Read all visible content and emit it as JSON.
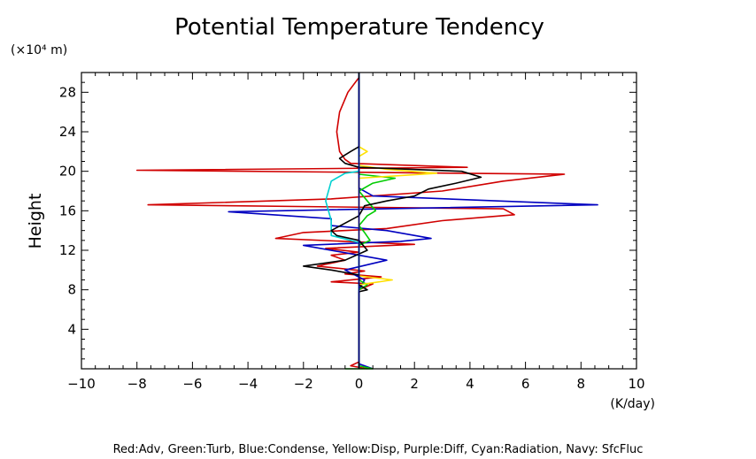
{
  "chart_data": {
    "type": "line",
    "title": "Potential Temperature Tendency",
    "xlabel": "",
    "ylabel": "Height",
    "y_unit": "(×10⁴ m)",
    "x_unit": "(K/day)",
    "xlim": [
      -10,
      10
    ],
    "ylim": [
      0,
      30
    ],
    "x_ticks": [
      -10,
      -8,
      -6,
      -4,
      -2,
      0,
      2,
      4,
      6,
      8,
      10
    ],
    "y_ticks": [
      4,
      8,
      12,
      16,
      20,
      24,
      28
    ],
    "grid": false,
    "legend_text": "Red:Adv, Green:Turb, Blue:Condense, Yellow:Disp, Purple:Diff, Cyan:Radiation, Navy: SfcFluc",
    "series": [
      {
        "color": "#d00000",
        "points": [
          [
            0.3,
            0
          ],
          [
            -0.3,
            0.3
          ],
          [
            0,
            0.7
          ],
          [
            0,
            8
          ],
          [
            0.5,
            8.6
          ],
          [
            -1,
            8.8
          ],
          [
            0.8,
            9.3
          ],
          [
            -0.5,
            9.6
          ],
          [
            0.2,
            9.9
          ],
          [
            -1.5,
            10.4
          ],
          [
            -0.5,
            11
          ],
          [
            -1,
            11.5
          ],
          [
            0,
            11.8
          ],
          [
            -1.2,
            12.2
          ],
          [
            2,
            12.6
          ],
          [
            -3,
            13.2
          ],
          [
            -2,
            13.8
          ],
          [
            1,
            14.2
          ],
          [
            3,
            15
          ],
          [
            5.6,
            15.6
          ],
          [
            5.2,
            16.2
          ],
          [
            -7.6,
            16.6
          ],
          [
            -1,
            17.2
          ],
          [
            3,
            18
          ],
          [
            5.2,
            19
          ],
          [
            7.4,
            19.7
          ],
          [
            -8,
            20.1
          ],
          [
            3.9,
            20.4
          ],
          [
            -0.3,
            20.8
          ],
          [
            -0.5,
            21.2
          ],
          [
            -0.7,
            22
          ],
          [
            -0.8,
            24
          ],
          [
            -0.7,
            26
          ],
          [
            -0.4,
            28
          ],
          [
            0,
            29.5
          ]
        ]
      },
      {
        "color": "#0000c0",
        "points": [
          [
            0.5,
            0
          ],
          [
            0,
            0.5
          ],
          [
            0,
            8
          ],
          [
            0.2,
            9
          ],
          [
            -0.5,
            10
          ],
          [
            1,
            11
          ],
          [
            -2,
            12.5
          ],
          [
            1.5,
            12.9
          ],
          [
            2.6,
            13.2
          ],
          [
            1,
            14
          ],
          [
            -1,
            14.5
          ],
          [
            -1,
            15.2
          ],
          [
            -4.7,
            15.9
          ],
          [
            8.6,
            16.6
          ],
          [
            0.5,
            17.5
          ],
          [
            0,
            18.3
          ],
          [
            0,
            20
          ],
          [
            0,
            30
          ]
        ]
      },
      {
        "color": "#00cc00",
        "points": [
          [
            -0.5,
            0
          ],
          [
            0.5,
            0
          ],
          [
            0,
            0.3
          ],
          [
            0,
            8
          ],
          [
            0.3,
            8.5
          ],
          [
            0,
            9
          ],
          [
            0,
            12.5
          ],
          [
            0.4,
            13
          ],
          [
            0.2,
            13.8
          ],
          [
            0,
            14.5
          ],
          [
            0.3,
            15.5
          ],
          [
            0.6,
            16
          ],
          [
            0.3,
            17
          ],
          [
            0,
            18
          ],
          [
            0.5,
            18.8
          ],
          [
            1.3,
            19.3
          ],
          [
            0,
            19.7
          ],
          [
            0,
            30
          ]
        ]
      },
      {
        "color": "#ffe000",
        "points": [
          [
            0,
            0
          ],
          [
            0,
            8.5
          ],
          [
            1.2,
            9
          ],
          [
            0,
            9.4
          ],
          [
            0,
            19.3
          ],
          [
            2.8,
            19.8
          ],
          [
            1,
            20.2
          ],
          [
            0,
            20.6
          ],
          [
            0,
            21.5
          ],
          [
            0.3,
            22
          ],
          [
            0,
            22.5
          ],
          [
            0,
            30
          ]
        ]
      },
      {
        "color": "#00d0d0",
        "points": [
          [
            0,
            0
          ],
          [
            0,
            12.8
          ],
          [
            -1,
            13.5
          ],
          [
            -1,
            15
          ],
          [
            -1.2,
            17
          ],
          [
            -1,
            19
          ],
          [
            -0.5,
            19.8
          ],
          [
            0,
            20
          ],
          [
            0,
            30
          ]
        ]
      },
      {
        "color": "#000000",
        "points": [
          [
            0,
            0
          ],
          [
            0,
            7.8
          ],
          [
            0.3,
            8
          ],
          [
            0,
            8.5
          ],
          [
            0,
            9.5
          ],
          [
            -1,
            10
          ],
          [
            -2,
            10.4
          ],
          [
            -0.5,
            11
          ],
          [
            0.3,
            12
          ],
          [
            0,
            13
          ],
          [
            -0.8,
            13.5
          ],
          [
            -1,
            14
          ],
          [
            0,
            15.5
          ],
          [
            0.2,
            16.5
          ],
          [
            1,
            17
          ],
          [
            2,
            17.5
          ],
          [
            2.5,
            18.2
          ],
          [
            3.5,
            18.8
          ],
          [
            4.4,
            19.4
          ],
          [
            3.7,
            20
          ],
          [
            0,
            20.4
          ],
          [
            -0.5,
            20.8
          ],
          [
            -0.7,
            21.3
          ],
          [
            -0.3,
            22
          ],
          [
            0,
            22.5
          ],
          [
            0,
            30
          ]
        ]
      },
      {
        "color": "#000080",
        "points": [
          [
            0,
            0
          ],
          [
            0,
            30
          ]
        ]
      }
    ]
  }
}
